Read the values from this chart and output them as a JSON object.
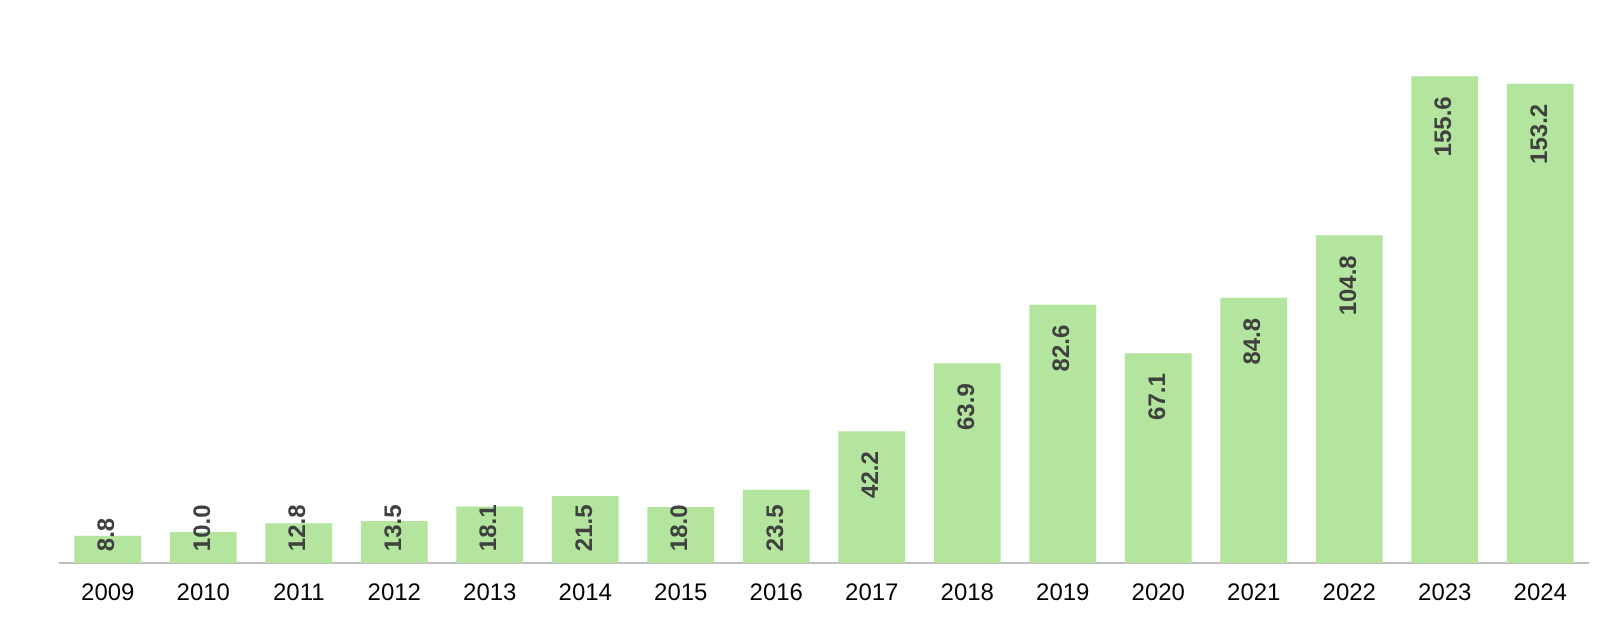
{
  "chart_data": {
    "type": "bar",
    "categories": [
      "2009",
      "2010",
      "2011",
      "2012",
      "2013",
      "2014",
      "2015",
      "2016",
      "2017",
      "2018",
      "2019",
      "2020",
      "2021",
      "2022",
      "2023",
      "2024"
    ],
    "values": [
      8.8,
      10.0,
      12.8,
      13.5,
      18.1,
      21.5,
      18.0,
      23.5,
      42.2,
      63.9,
      82.6,
      67.1,
      84.8,
      104.8,
      155.6,
      153.2
    ],
    "value_labels": [
      "8.8",
      "10.0",
      "12.8",
      "13.5",
      "18.1",
      "21.5",
      "18.0",
      "23.5",
      "42.2",
      "63.9",
      "82.6",
      "67.1",
      "84.8",
      "104.8",
      "155.6",
      "153.2"
    ],
    "color": "#b3e59f",
    "tick_labels": "x",
    "grid": false,
    "legend": false
  }
}
